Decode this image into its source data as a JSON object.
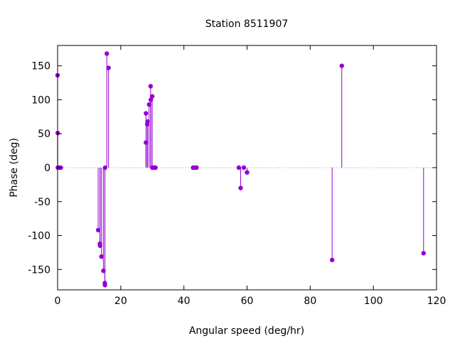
{
  "chart_data": {
    "type": "scatter",
    "style": "impulses-with-points",
    "title": "Station 8511907",
    "xlabel": "Angular speed (deg/hr)",
    "ylabel": "Phase (deg)",
    "xlim": [
      0,
      120
    ],
    "ylim": [
      -180,
      180
    ],
    "xticks": [
      0,
      20,
      40,
      60,
      80,
      100,
      120
    ],
    "yticks": [
      -150,
      -100,
      -50,
      0,
      50,
      100,
      150
    ],
    "grid": false,
    "zero_line": true,
    "color": "#9400d3",
    "series": [
      {
        "points": [
          [
            0.0,
            136
          ],
          [
            0.04,
            51
          ],
          [
            0.08,
            0
          ],
          [
            0.5,
            0
          ],
          [
            1.0,
            0
          ],
          [
            12.85,
            -92
          ],
          [
            13.4,
            -112
          ],
          [
            13.45,
            -115
          ],
          [
            13.9,
            -131
          ],
          [
            14.5,
            -152
          ],
          [
            14.96,
            -170
          ],
          [
            15.0,
            -173
          ],
          [
            15.04,
            0
          ],
          [
            15.59,
            168
          ],
          [
            16.14,
            147
          ],
          [
            27.97,
            37
          ],
          [
            28.0,
            80
          ],
          [
            28.4,
            64
          ],
          [
            28.5,
            68
          ],
          [
            28.98,
            93
          ],
          [
            29.46,
            120
          ],
          [
            29.53,
            100
          ],
          [
            29.96,
            105
          ],
          [
            30.0,
            0
          ],
          [
            30.4,
            0
          ],
          [
            30.9,
            0
          ],
          [
            31.0,
            0
          ],
          [
            42.9,
            0
          ],
          [
            43.5,
            0
          ],
          [
            44.0,
            0
          ],
          [
            57.4,
            0
          ],
          [
            57.97,
            -30
          ],
          [
            58.98,
            0
          ],
          [
            60.0,
            -7
          ],
          [
            86.95,
            -136
          ],
          [
            90.0,
            150
          ],
          [
            115.9,
            -126
          ]
        ]
      }
    ]
  }
}
